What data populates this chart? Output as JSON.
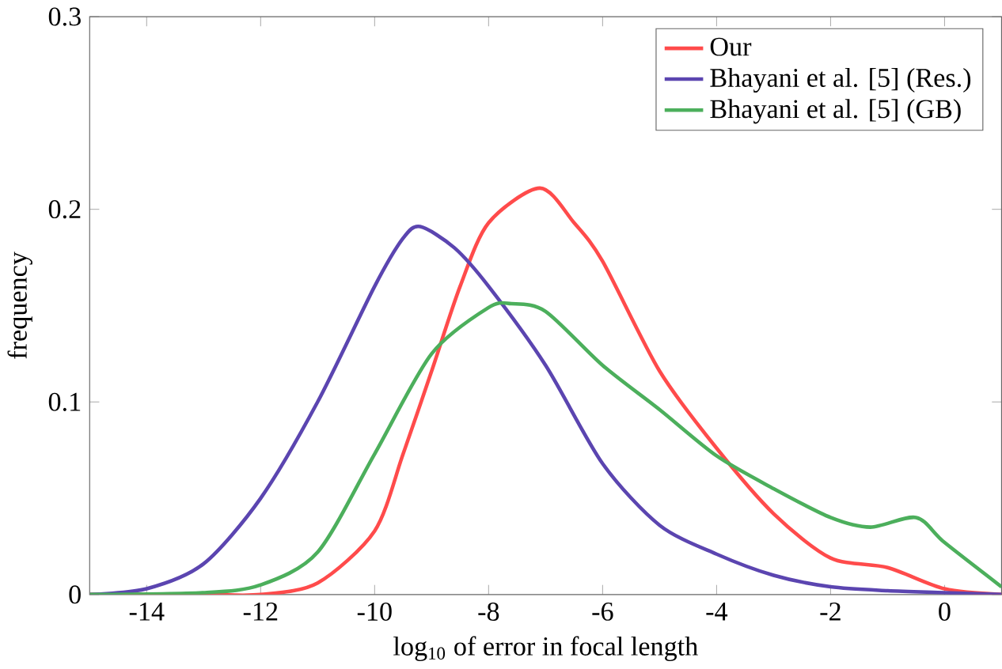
{
  "chart_data": {
    "type": "line",
    "xlabel": "log$_{10}$ of error in focal length",
    "ylabel": "frequency",
    "xlim": [
      -15,
      1
    ],
    "ylim": [
      0,
      0.3
    ],
    "xticks": [
      -14,
      -12,
      -10,
      -8,
      -6,
      -4,
      -2,
      0
    ],
    "yticks": [
      0,
      0.1,
      0.2,
      0.3
    ],
    "grid": false,
    "legend": "top right",
    "marker": "none",
    "line_style": "solid",
    "series": [
      {
        "name": "Our",
        "color": "#ff4b4b",
        "x": [
          -15,
          -13,
          -12,
          -11,
          -10,
          -9.5,
          -9,
          -8.5,
          -8,
          -7.1,
          -6.5,
          -6,
          -5,
          -4,
          -3,
          -2,
          -1,
          0,
          1
        ],
        "values": [
          0,
          0,
          0,
          0.006,
          0.033,
          0.073,
          0.116,
          0.16,
          0.193,
          0.211,
          0.193,
          0.173,
          0.116,
          0.076,
          0.042,
          0.019,
          0.014,
          0.003,
          0
        ]
      },
      {
        "name": "Bhayani et al. [5] (Res.)",
        "color": "#5b45b0",
        "x": [
          -15,
          -14,
          -13,
          -12,
          -11,
          -10,
          -9.5,
          -9.2,
          -8.6,
          -8,
          -7,
          -6,
          -5,
          -4,
          -3,
          -2,
          -1,
          0,
          1
        ],
        "values": [
          0,
          0.003,
          0.016,
          0.05,
          0.1,
          0.16,
          0.185,
          0.191,
          0.18,
          0.16,
          0.119,
          0.068,
          0.036,
          0.021,
          0.01,
          0.004,
          0.002,
          0.001,
          0
        ]
      },
      {
        "name": "Bhayani et al. [5] (GB)",
        "color": "#4caf5c",
        "x": [
          -15,
          -13,
          -12,
          -11,
          -10,
          -9,
          -8,
          -7.6,
          -7,
          -6,
          -5,
          -4,
          -3,
          -2,
          -1.3,
          -0.5,
          0,
          1
        ],
        "values": [
          0,
          0.001,
          0.005,
          0.022,
          0.073,
          0.125,
          0.149,
          0.151,
          0.147,
          0.119,
          0.096,
          0.072,
          0.055,
          0.04,
          0.035,
          0.04,
          0.027,
          0.004
        ]
      }
    ]
  }
}
